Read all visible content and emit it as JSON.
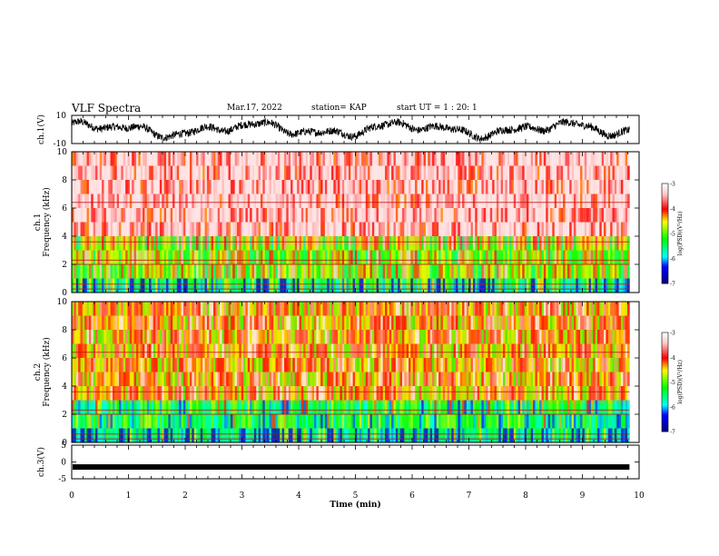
{
  "header": {
    "title": "VLF Spectra",
    "date": "Mar.17, 2022",
    "station": "station= KAP",
    "start_ut": "start  UT =   1 : 20: 1"
  },
  "chart_data": [
    {
      "type": "line",
      "panel": "ch1-waveform",
      "ylabel": "ch.1(V)",
      "ylim": [
        -10,
        10
      ],
      "yticks": [
        "10",
        "-10"
      ],
      "x_range_min": [
        0,
        9.83
      ],
      "series": [
        {
          "values_description_min": [
            0,
            9.83
          ],
          "y_range": [
            -8,
            8
          ]
        }
      ]
    },
    {
      "type": "heatmap",
      "panel": "ch1-spectrogram",
      "ylabel": "ch.1\nFrequency (kHz)",
      "ylim": [
        0,
        10
      ],
      "yticks": [
        "0",
        "2",
        "4",
        "6",
        "8",
        "10"
      ],
      "colorbar": {
        "label": "log(PSD)(V²/Hz)",
        "ticks": [
          "-3",
          "-4",
          "-5",
          "-6",
          "-7"
        ],
        "range": [
          -7,
          -3
        ]
      },
      "bands": [
        {
          "f_range_khz": [
            0,
            0.5
          ],
          "level": -6.0
        },
        {
          "f_range_khz": [
            0.5,
            3.3
          ],
          "level": -4.9
        },
        {
          "f_range_khz": [
            3.3,
            10
          ],
          "level": -3.6
        }
      ]
    },
    {
      "type": "heatmap",
      "panel": "ch2-spectrogram",
      "ylabel": "ch.2\nFrequency (kHz)",
      "ylim": [
        0,
        10
      ],
      "yticks": [
        "0",
        "2",
        "4",
        "6",
        "8",
        "10"
      ],
      "colorbar": {
        "label": "log(PSD)(V²/Hz)",
        "ticks": [
          "-3",
          "-4",
          "-5",
          "-6",
          "-7"
        ],
        "range": [
          -7,
          -3
        ]
      },
      "bands": [
        {
          "f_range_khz": [
            0,
            0.4
          ],
          "level": -6.0
        },
        {
          "f_range_khz": [
            0.4,
            2.8
          ],
          "level": -5.5
        },
        {
          "f_range_khz": [
            2.8,
            10
          ],
          "level": -4.3
        }
      ]
    },
    {
      "type": "line",
      "panel": "ch3-waveform",
      "ylabel": "ch.3(V)",
      "ylim": [
        -5,
        5
      ],
      "yticks": [
        "5",
        "0",
        "-5"
      ],
      "xlabel": "Time (min)",
      "xlim": [
        0,
        10
      ],
      "xticks": [
        "0",
        "1",
        "2",
        "3",
        "4",
        "5",
        "6",
        "7",
        "8",
        "9",
        "10"
      ],
      "series": [
        {
          "level": -1.5,
          "x_range_min": [
            0,
            9.83
          ]
        }
      ]
    }
  ],
  "colors": {
    "high": "#ff0000",
    "mid": "#ffff00",
    "low": "#00ff00",
    "lower": "#00ffff",
    "min": "#000080"
  }
}
